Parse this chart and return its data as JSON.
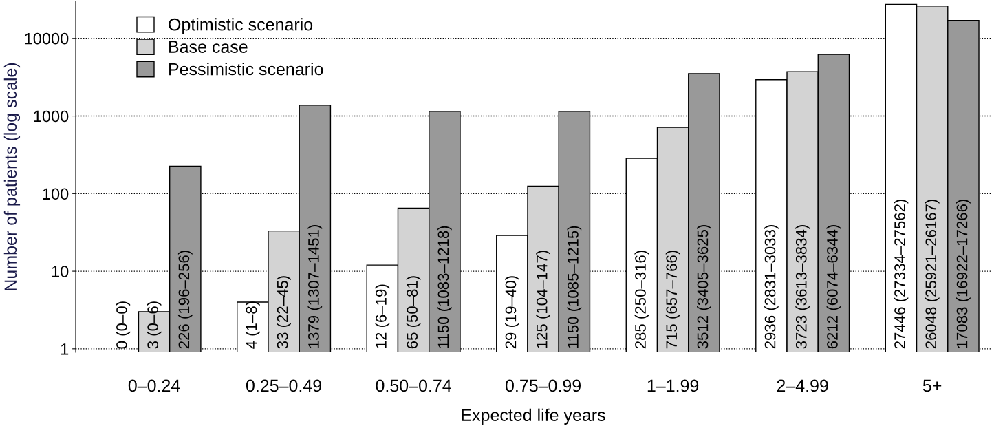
{
  "chart_data": {
    "type": "bar",
    "xlabel": "Expected life years",
    "ylabel": "Number of patients (log scale)",
    "categories": [
      "0–0.24",
      "0.25–0.49",
      "0.50–0.74",
      "0.75–0.99",
      "1–1.99",
      "2–4.99",
      "5+"
    ],
    "series": [
      {
        "name": "Optimistic scenario",
        "color": "#ffffff",
        "values": [
          null,
          4,
          12,
          29,
          285,
          2936,
          27446
        ],
        "value_labels": [
          "0 (0–0)",
          "4 (1–8)",
          "12 (6–19)",
          "29 (19–40)",
          "285 (250–316)",
          "2936 (2831–3033)",
          "27446 (27334–27562)"
        ]
      },
      {
        "name": "Base case",
        "color": "#d3d3d3",
        "values": [
          3,
          33,
          65,
          125,
          715,
          3723,
          26048
        ],
        "value_labels": [
          "3 (0–6)",
          "33 (22–45)",
          "65 (50–81)",
          "125 (104–147)",
          "715 (657–766)",
          "3723 (3613–3834)",
          "26048 (25921–26167)"
        ]
      },
      {
        "name": "Pessimistic scenario",
        "color": "#999999",
        "values": [
          226,
          1379,
          1150,
          1150,
          3512,
          6212,
          17083
        ],
        "value_labels": [
          "226 (196–256)",
          "1379 (1307–1451)",
          "1150 (1083–1218)",
          "1150 (1085–1215)",
          "3512 (3405–3625)",
          "6212 (6074–6344)",
          "17083 (16922–17266)"
        ]
      }
    ],
    "log": "y",
    "ylim": [
      0.9,
      30000
    ],
    "yticks": [
      1,
      10,
      100,
      1000,
      10000
    ],
    "grid": "y",
    "legend": "top left"
  }
}
